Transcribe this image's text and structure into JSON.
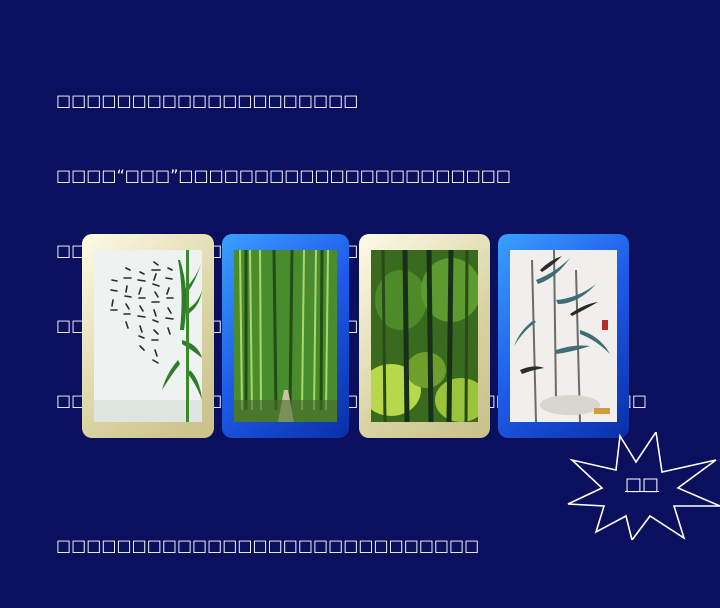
{
  "text": {
    "line1": "□□□□□□□□□□□□□□□□□□□□",
    "line2": "□□□□“□□□”□□□□□□□□□□□□□□□□□□□□□□",
    "line3": "□□□□□□□□□□□□□□□□□□□□□□□□□□□□",
    "line4": "□□□□□□□□□□□□□□□□□□□□□“□□□□□”□",
    "line5": "□□□□□□□□□□□□□□□□□□□□□“□□”□□□□□□□□□□□□□□□",
    "line6": "□□□□□□□□□□□□□□□□□□□□□□□□□□□□"
  },
  "images": [
    {
      "frame": "cream",
      "subject": "calligraphy scroll with bamboo leaves"
    },
    {
      "frame": "blue",
      "subject": "bamboo forest path"
    },
    {
      "frame": "cream",
      "subject": "bamboo grove"
    },
    {
      "frame": "blue",
      "subject": "bamboo ink painting"
    }
  ],
  "star_button": {
    "label": "□□"
  },
  "colors": {
    "background": "#0a0f5e",
    "text": "#ffffff",
    "frame_cream": "#e8e2b8",
    "frame_blue": "#1e5ae8"
  }
}
